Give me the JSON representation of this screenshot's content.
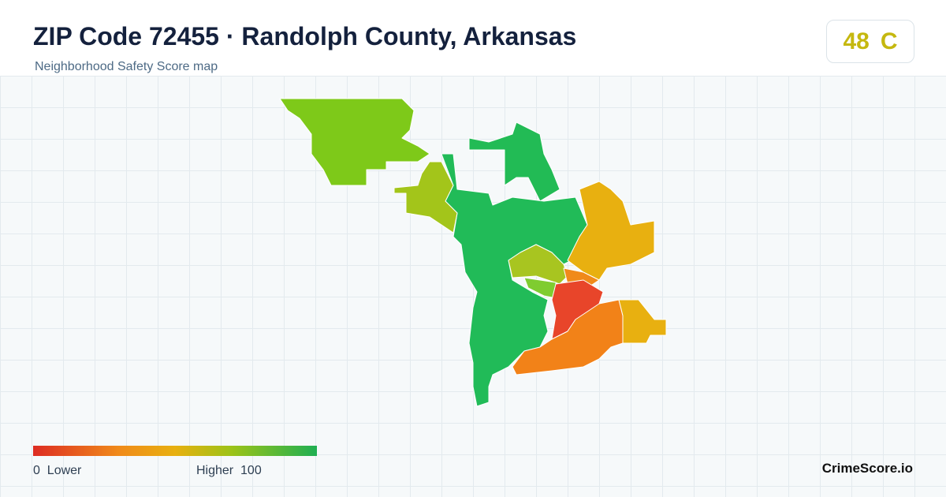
{
  "header": {
    "title": "ZIP Code 72455 · Randolph County, Arkansas",
    "subtitle": "Neighborhood Safety Score map"
  },
  "score": {
    "value": 48,
    "grade": "C"
  },
  "legend": {
    "min": 0,
    "min_label": "Lower",
    "max_label": "Higher",
    "max": 100
  },
  "brand": "CrimeScore.io"
}
